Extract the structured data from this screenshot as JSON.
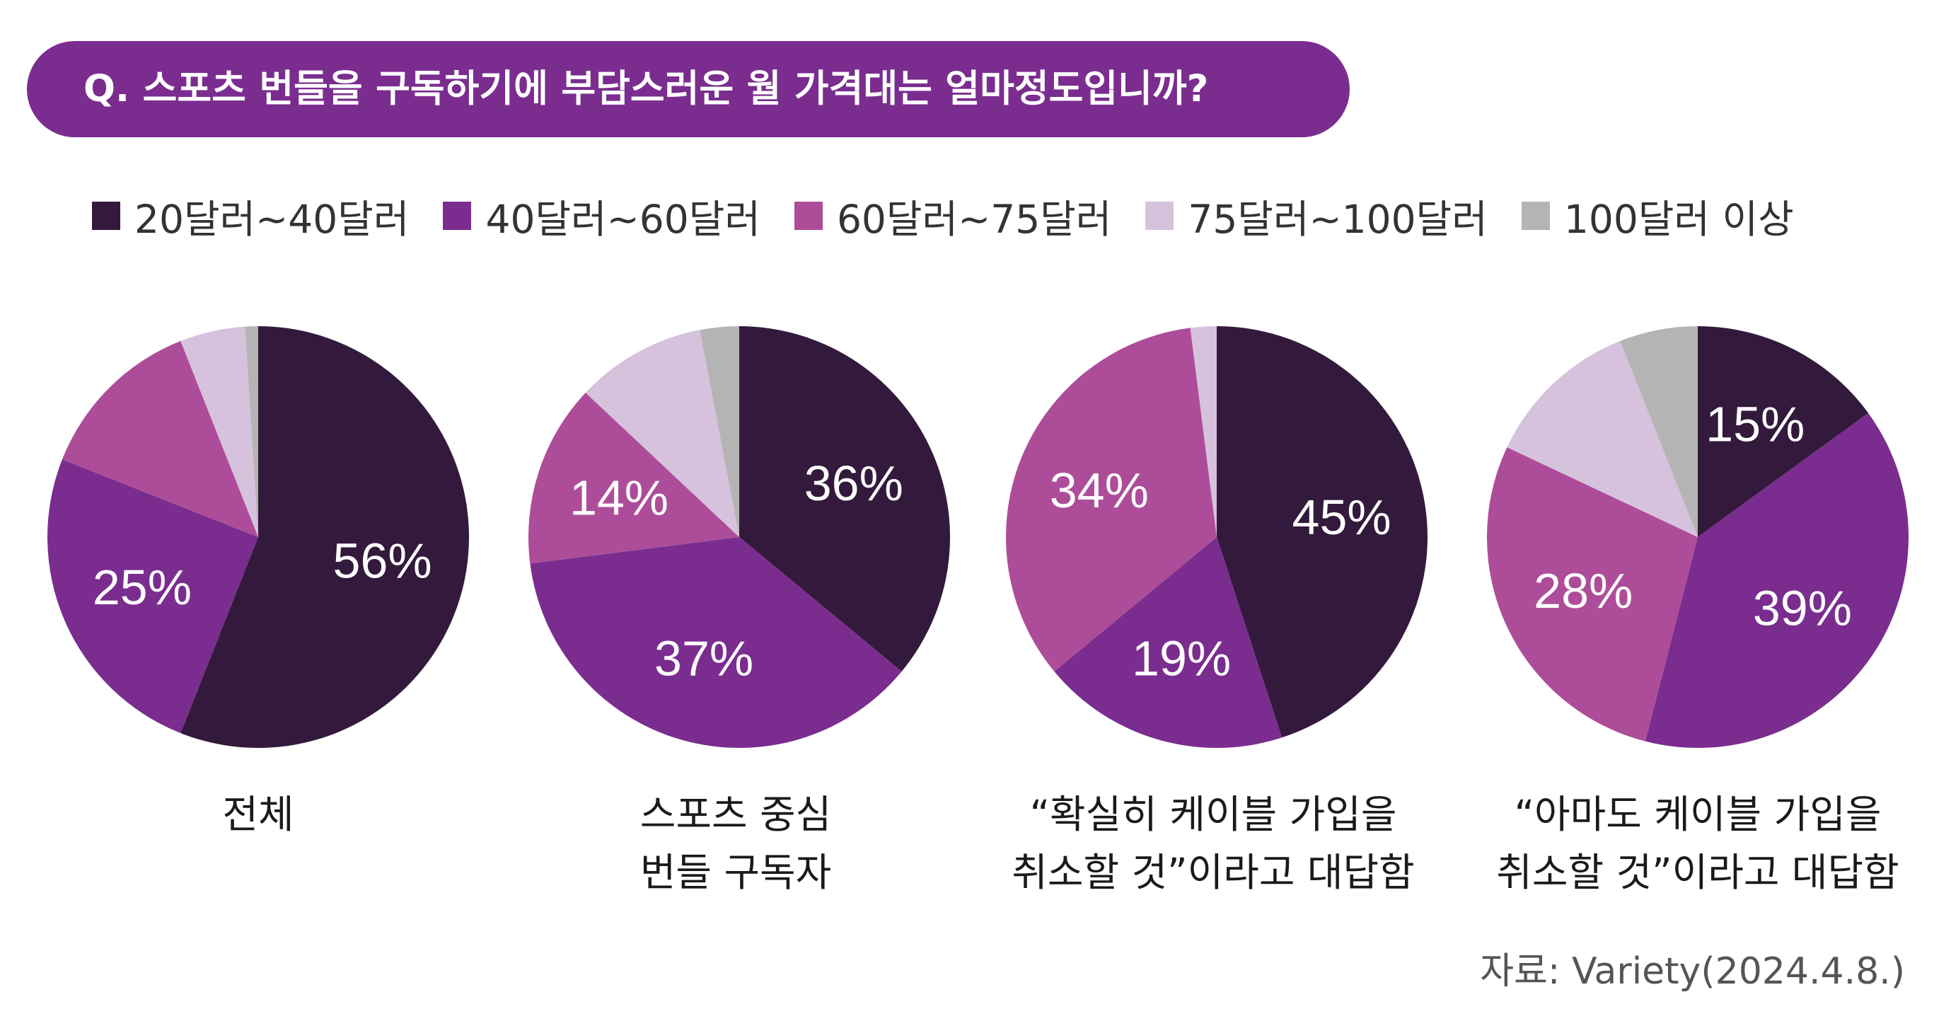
{
  "question": "Q. 스포츠 번들을 구독하기에 부담스러운 월 가격대는 얼마정도입니까?",
  "legend": [
    {
      "label": "20달러~40달러",
      "color": "#331a3c"
    },
    {
      "label": "40달러~60달러",
      "color": "#7a2d8f"
    },
    {
      "label": "60달러~75달러",
      "color": "#ad4d99"
    },
    {
      "label": "75달러~100달러",
      "color": "#d6c2dc"
    },
    {
      "label": "100달러 이상",
      "color": "#b4b4b4"
    }
  ],
  "captions": [
    {
      "line1": "전체",
      "line2": ""
    },
    {
      "line1": "스포츠 중심",
      "line2": "번들 구독자"
    },
    {
      "line1": "“확실히 케이블 가입을",
      "line2": "취소할 것”이라고 대답함"
    },
    {
      "line1": "“아마도 케이블 가입을",
      "line2": "취소할 것”이라고 대답함"
    }
  ],
  "source": "자료: Variety(2024.4.8.)",
  "chart_data": [
    {
      "type": "pie",
      "categories": [
        "20달러~40달러",
        "40달러~60달러",
        "60달러~75달러",
        "75달러~100달러",
        "100달러 이상"
      ],
      "values": [
        56,
        25,
        13,
        5,
        1
      ],
      "labels": [
        "56%",
        "25%",
        "",
        "",
        ""
      ]
    },
    {
      "type": "pie",
      "categories": [
        "20달러~40달러",
        "40달러~60달러",
        "60달러~75달러",
        "75달러~100달러",
        "100달러 이상"
      ],
      "values": [
        36,
        37,
        14,
        10,
        3
      ],
      "labels": [
        "36%",
        "37%",
        "14%",
        "",
        ""
      ]
    },
    {
      "type": "pie",
      "categories": [
        "20달러~40달러",
        "40달러~60달러",
        "60달러~75달러",
        "75달러~100달러",
        "100달러 이상"
      ],
      "values": [
        45,
        19,
        34,
        2,
        0
      ],
      "labels": [
        "45%",
        "19%",
        "34%",
        "",
        ""
      ]
    },
    {
      "type": "pie",
      "categories": [
        "20달러~40달러",
        "40달러~60달러",
        "60달러~75달러",
        "75달러~100달러",
        "100달러 이상"
      ],
      "values": [
        15,
        39,
        28,
        12,
        6
      ],
      "labels": [
        "15%",
        "39%",
        "28%",
        "",
        ""
      ]
    }
  ]
}
